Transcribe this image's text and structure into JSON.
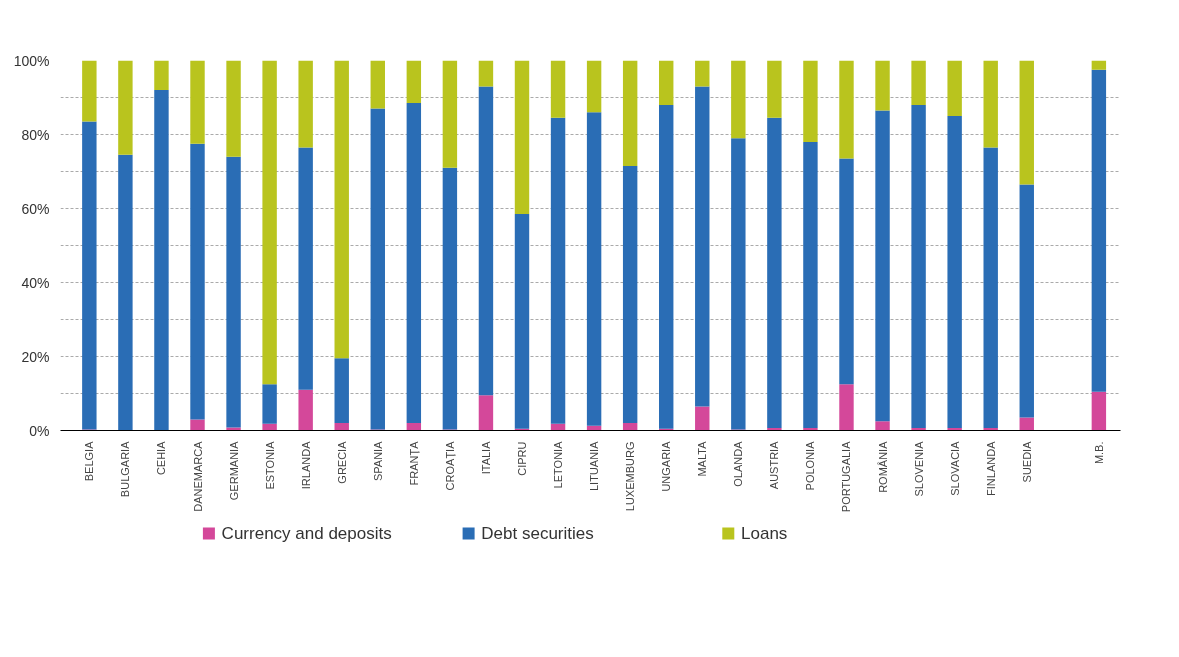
{
  "chart_data": {
    "type": "bar",
    "stacked": true,
    "categories": [
      "BELGIA",
      "BULGARIA",
      "CEHIA",
      "DANEMARCA",
      "GERMANIA",
      "ESTONIA",
      "IRLANDA",
      "GRECIA",
      "SPANIA",
      "FRANȚA",
      "CROAȚIA",
      "ITALIA",
      "CIPRU",
      "LETONIA",
      "LITUANIA",
      "LUXEMBURG",
      "UNGARIA",
      "MALTA",
      "OLANDA",
      "AUSTRIA",
      "POLONIA",
      "PORTUGALIA",
      "ROMÂNIA",
      "SLOVENIA",
      "SLOVACIA",
      "FINLANDA",
      "SUEDIA",
      null,
      "M.B."
    ],
    "series": [
      {
        "name": "Currency and deposits",
        "color": "#d4489a",
        "values": [
          0.3,
          null,
          null,
          3,
          0.8,
          1.8,
          11,
          2,
          0.3,
          2,
          0.3,
          9.5,
          0.5,
          1.8,
          1.3,
          2,
          0.5,
          6.5,
          0.3,
          0.7,
          0.7,
          12.5,
          2.5,
          0.7,
          0.7,
          0.7,
          3.5,
          null,
          10.5
        ]
      },
      {
        "name": "Debt securities",
        "color": "#2a6db5",
        "values": [
          83.2,
          74.5,
          92,
          74.5,
          73.2,
          10.7,
          65.5,
          17.5,
          86.7,
          86.5,
          70.7,
          83.5,
          58,
          82.7,
          84.7,
          69.5,
          87.5,
          86.5,
          78.7,
          83.8,
          77.3,
          61,
          84,
          87.3,
          84.3,
          75.8,
          63,
          null,
          87
        ]
      },
      {
        "name": "Loans",
        "color": "#b9c41e",
        "values": [
          16.5,
          25.5,
          8,
          22.5,
          26,
          87.5,
          23.5,
          80.5,
          13,
          11.5,
          29,
          7,
          41.5,
          15.5,
          14,
          28.5,
          12,
          7,
          21,
          15.5,
          22,
          26.5,
          13.5,
          12,
          15,
          23.5,
          33.5,
          null,
          2.5
        ]
      }
    ],
    "ylim": [
      0,
      100
    ],
    "yticks": [
      {
        "value": 0,
        "label": "0%"
      },
      {
        "value": 10,
        "label": null
      },
      {
        "value": 20,
        "label": "20%"
      },
      {
        "value": 30,
        "label": null
      },
      {
        "value": 40,
        "label": "40%"
      },
      {
        "value": 50,
        "label": null
      },
      {
        "value": 60,
        "label": "60%"
      },
      {
        "value": 70,
        "label": null
      },
      {
        "value": 80,
        "label": "80%"
      },
      {
        "value": 90,
        "label": null
      },
      {
        "value": 100,
        "label": "100%"
      }
    ],
    "grid": "y",
    "legend": "bottom"
  }
}
